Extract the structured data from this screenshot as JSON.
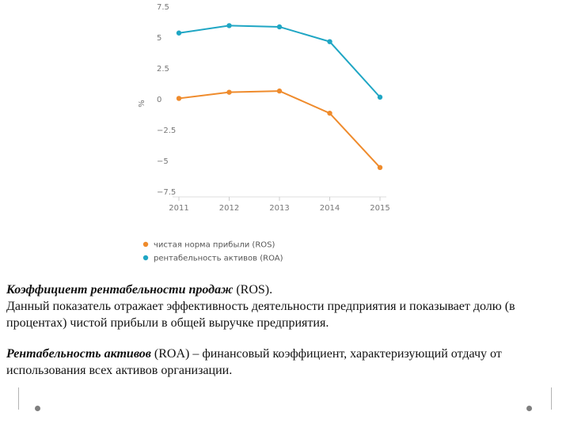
{
  "chart_data": {
    "type": "line",
    "x": [
      "2011",
      "2012",
      "2013",
      "2014",
      "2015"
    ],
    "yticks": [
      "7.5",
      "5",
      "2.5",
      "0",
      "−2.5",
      "−5",
      "−7.5"
    ],
    "ytick_values": [
      7.5,
      5,
      2.5,
      0,
      -2.5,
      -5,
      -7.5
    ],
    "ylim": [
      -7.5,
      7.5
    ],
    "ylabel": "%",
    "grid": false,
    "legend_position": "bottom",
    "series": [
      {
        "name": "чистая норма прибыли (ROS)",
        "color": "#ef8b2c",
        "values": [
          0.1,
          0.6,
          0.7,
          -1.1,
          -5.5
        ]
      },
      {
        "name": "рентабельность активов (ROA)",
        "color": "#1fa6c4",
        "values": [
          5.4,
          6.0,
          5.9,
          4.7,
          0.2
        ]
      }
    ]
  },
  "text": {
    "p1_bold": "Коэффициент рентабельности продаж",
    "p1_rest": " (ROS).",
    "p1_line2": "Данный показатель отражает эффективность деятельности предприятия и показывает долю (в процентах) чистой прибыли в общей выручке предприятия.",
    "p2_bold": "Рентабельность активов",
    "p2_rest": " (ROA) – финансовый коэффициент, характеризующий отдачу от использования всех активов организации."
  }
}
